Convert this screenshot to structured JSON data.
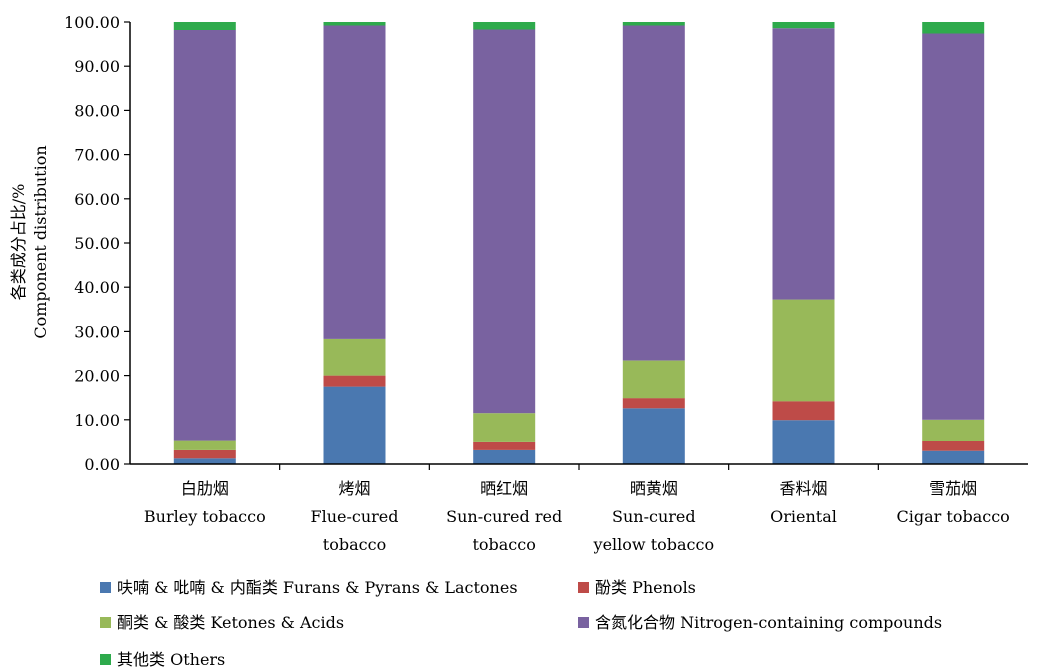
{
  "chart_data": {
    "type": "bar",
    "stacked": true,
    "ylabel_cn": "各类成分占比/%",
    "ylabel_en": "Component distribution",
    "ylim": [
      0,
      100
    ],
    "yticks": [
      "0.00",
      "10.00",
      "20.00",
      "30.00",
      "40.00",
      "50.00",
      "60.00",
      "70.00",
      "80.00",
      "90.00",
      "100.00"
    ],
    "categories": [
      {
        "cn": "白肋烟",
        "en": [
          "Burley tobacco"
        ]
      },
      {
        "cn": "烤烟",
        "en": [
          "Flue-cured",
          "tobacco"
        ]
      },
      {
        "cn": "晒红烟",
        "en": [
          "Sun-cured red",
          "tobacco"
        ]
      },
      {
        "cn": "晒黄烟",
        "en": [
          "Sun-cured",
          "yellow tobacco"
        ]
      },
      {
        "cn": "香料烟",
        "en": [
          "Oriental"
        ]
      },
      {
        "cn": "雪茄烟",
        "en": [
          "Cigar tobacco"
        ]
      }
    ],
    "series": [
      {
        "name": "呋喃 & 吡喃 & 内酯类 Furans & Pyrans & Lactones",
        "color": "#4a78b0",
        "values": [
          1.3,
          17.5,
          3.2,
          12.6,
          9.9,
          3.0
        ]
      },
      {
        "name": "酚类 Phenols",
        "color": "#be4b48",
        "values": [
          1.9,
          2.5,
          1.8,
          2.3,
          4.3,
          2.2
        ]
      },
      {
        "name": "酮类 & 酸类 Ketones & Acids",
        "color": "#98b959",
        "values": [
          2.1,
          8.3,
          6.5,
          8.5,
          23.0,
          4.8
        ]
      },
      {
        "name": "含氮化合物 Nitrogen-containing compounds",
        "color": "#7962a0",
        "values": [
          92.9,
          70.9,
          86.8,
          75.8,
          61.4,
          87.4
        ]
      },
      {
        "name": "其他类 Others",
        "color": "#2eaa4c",
        "values": [
          1.8,
          0.8,
          1.7,
          0.8,
          1.4,
          2.6
        ]
      }
    ],
    "legend_position": "bottom",
    "grid": false
  }
}
